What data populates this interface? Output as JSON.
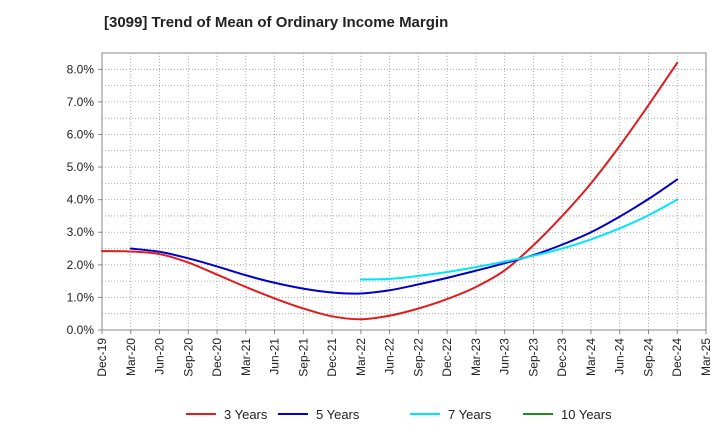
{
  "chart_data": {
    "type": "line",
    "title": "[3099]  Trend of Mean of Ordinary Income Margin",
    "xlabel": "",
    "ylabel": "",
    "x": [
      "Dec-19",
      "Mar-20",
      "Jun-20",
      "Sep-20",
      "Dec-20",
      "Mar-21",
      "Jun-21",
      "Sep-21",
      "Dec-21",
      "Mar-22",
      "Jun-22",
      "Sep-22",
      "Dec-22",
      "Mar-23",
      "Jun-23",
      "Sep-23",
      "Dec-23",
      "Mar-24",
      "Jun-24",
      "Sep-24",
      "Dec-24",
      "Mar-25"
    ],
    "ylim": [
      0,
      8.5
    ],
    "yticks": [
      0,
      1,
      2,
      3,
      4,
      5,
      6,
      7,
      8
    ],
    "ytick_labels": [
      "0.0%",
      "1.0%",
      "2.0%",
      "3.0%",
      "4.0%",
      "5.0%",
      "6.0%",
      "7.0%",
      "8.0%"
    ],
    "grid": true,
    "legend_position": "bottom",
    "series": [
      {
        "name": "3 Years",
        "color": "#e31a1c",
        "values": [
          2.42,
          2.41,
          2.33,
          2.07,
          1.7,
          1.32,
          0.97,
          0.66,
          0.42,
          0.33,
          0.44,
          0.66,
          0.95,
          1.32,
          1.83,
          2.6,
          3.5,
          4.5,
          5.65,
          6.9,
          8.2,
          null
        ]
      },
      {
        "name": "5 Years",
        "color": "#0000cd",
        "values": [
          null,
          2.5,
          2.4,
          2.2,
          1.95,
          1.68,
          1.45,
          1.27,
          1.15,
          1.12,
          1.22,
          1.4,
          1.6,
          1.82,
          2.05,
          2.3,
          2.62,
          3.0,
          3.48,
          4.02,
          4.62,
          null
        ]
      },
      {
        "name": "7 Years",
        "color": "#00e5ff",
        "values": [
          null,
          null,
          null,
          null,
          null,
          null,
          null,
          null,
          null,
          1.55,
          1.57,
          1.66,
          1.78,
          1.93,
          2.1,
          2.28,
          2.5,
          2.78,
          3.12,
          3.52,
          4.0,
          null
        ]
      },
      {
        "name": "10 Years",
        "color": "#228b22",
        "values": [
          null,
          null,
          null,
          null,
          null,
          null,
          null,
          null,
          null,
          null,
          null,
          null,
          null,
          null,
          null,
          null,
          null,
          null,
          null,
          null,
          null,
          null
        ]
      }
    ]
  }
}
